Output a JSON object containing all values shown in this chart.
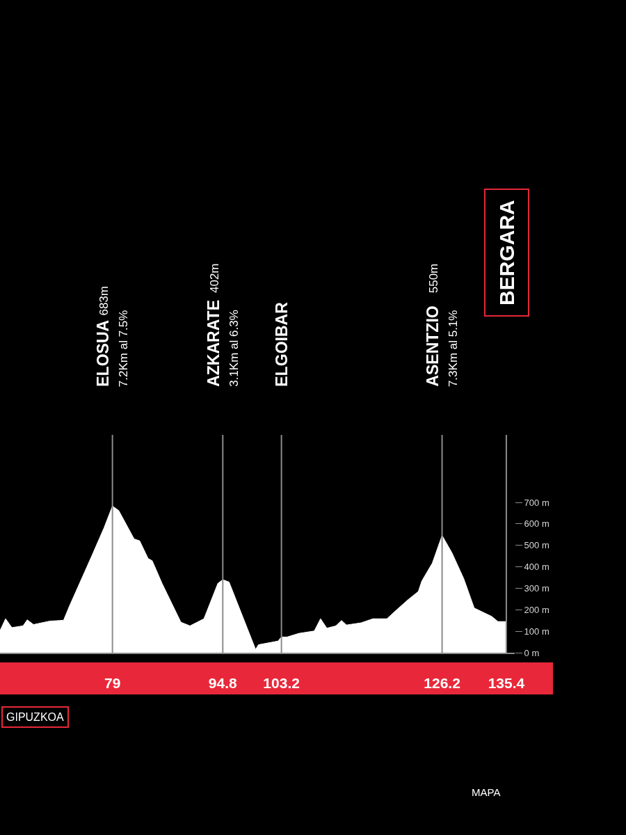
{
  "chart_data": {
    "type": "area",
    "x": [
      62.9,
      63.7,
      64.6,
      66.2,
      66.8,
      67.7,
      70.0,
      72.0,
      72.8,
      76.1,
      77.8,
      79.0,
      79.9,
      82.1,
      82.9,
      84.1,
      84.7,
      86.1,
      88.8,
      90.1,
      92.1,
      94.1,
      94.8,
      95.7,
      99.5,
      99.9,
      102.7,
      103.2,
      104.0,
      105.7,
      107.9,
      108.8,
      109.7,
      111.0,
      111.8,
      112.5,
      114.6,
      116.3,
      118.3,
      119.6,
      121.3,
      122.8,
      123.3,
      124.8,
      126.2,
      127.6,
      129.3,
      130.8,
      133.3,
      134.2,
      135.4
    ],
    "series": [
      {
        "color": "#ffffff",
        "values": [
          103,
          158,
          117,
          125,
          153,
          131,
          147,
          151,
          214,
          455,
          582,
          683,
          662,
          530,
          521,
          439,
          428,
          323,
          142,
          125,
          158,
          323,
          340,
          329,
          15,
          37,
          54,
          73,
          73,
          90,
          101,
          158,
          114,
          125,
          150,
          129,
          139,
          158,
          158,
          197,
          246,
          285,
          334,
          417,
          546,
          466,
          345,
          208,
          169,
          145,
          145
        ]
      }
    ],
    "xlim": [
      62.9,
      136.6
    ],
    "xticks": [
      79,
      94.8,
      103.2,
      126.2,
      135.4
    ],
    "ylim": [
      0,
      700
    ],
    "yticks": [
      {
        "value": 0,
        "label": "0 m"
      },
      {
        "value": 100,
        "label": "100 m"
      },
      {
        "value": 200,
        "label": "200 m"
      },
      {
        "value": 300,
        "label": "300 m"
      },
      {
        "value": 400,
        "label": "400 m"
      },
      {
        "value": 500,
        "label": "500 m"
      },
      {
        "value": 600,
        "label": "600 m"
      },
      {
        "value": 700,
        "label": "700 m"
      }
    ],
    "ref_lines": [
      {
        "axis": "x",
        "value": 79,
        "color": "#8c8c8c"
      },
      {
        "axis": "x",
        "value": 94.8,
        "color": "#8c8c8c"
      },
      {
        "axis": "x",
        "value": 103.2,
        "color": "#8c8c8c"
      },
      {
        "axis": "x",
        "value": 126.2,
        "color": "#8c8c8c"
      },
      {
        "axis": "x",
        "value": 135.4,
        "color": "#8c8c8c"
      }
    ],
    "annotations": [
      "ELOSUA",
      "683m",
      "7.2Km al 7.5%",
      "AZKARATE",
      "402m",
      "3.1Km al 6.3%",
      "ELGOIBAR",
      "ASENTZIO",
      "550m",
      "7.3Km al 5.1%",
      "BERGARA",
      "GIPUZKOA",
      "MAPA"
    ]
  }
}
